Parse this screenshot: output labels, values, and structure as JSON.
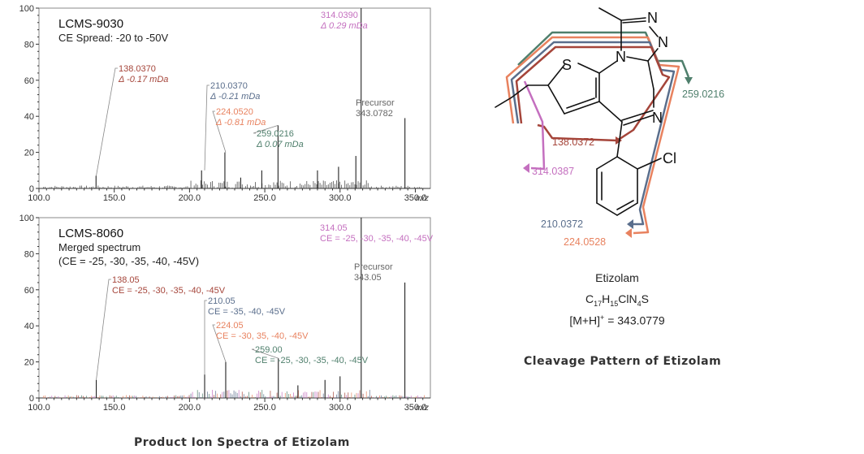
{
  "colors": {
    "c138": "#a5453a",
    "c210": "#5a6e8c",
    "c224": "#e8825f",
    "c259": "#4f7f6c",
    "c314": "#c46fbf",
    "precursor": "#666666",
    "axis": "#333333"
  },
  "chart_data": [
    {
      "type": "line",
      "title": "LCMS-9030",
      "subtitle": "CE Spread: -20 to -50V",
      "xlabel": "m/z",
      "ylabel": "",
      "xlim": [
        100,
        360
      ],
      "ylim": [
        0,
        100
      ],
      "xticks": [
        "100.0",
        "150.0",
        "200.0",
        "250.0",
        "300.0",
        "350.0"
      ],
      "yticks": [
        "0",
        "20",
        "40",
        "60",
        "80",
        "100"
      ],
      "grid": false,
      "peaks": [
        {
          "mz": 137.9,
          "intensity": 7
        },
        {
          "mz": 208.0,
          "intensity": 10
        },
        {
          "mz": 223.5,
          "intensity": 20
        },
        {
          "mz": 234,
          "intensity": 6
        },
        {
          "mz": 248,
          "intensity": 10
        },
        {
          "mz": 258.8,
          "intensity": 35
        },
        {
          "mz": 285,
          "intensity": 10
        },
        {
          "mz": 299,
          "intensity": 12
        },
        {
          "mz": 310.5,
          "intensity": 18
        },
        {
          "mz": 314.0,
          "intensity": 100
        },
        {
          "mz": 343.1,
          "intensity": 39
        }
      ],
      "annotations": [
        {
          "mz": 138.037,
          "line1": "138.0370",
          "line2": "Δ -0.17 mDa",
          "color": "c138"
        },
        {
          "mz": 210.037,
          "line1": "210.0370",
          "line2": "Δ -0.21 mDa",
          "color": "c210"
        },
        {
          "mz": 224.052,
          "line1": "224.0520",
          "line2": "Δ -0.81 mDa",
          "color": "c224"
        },
        {
          "mz": 259.0216,
          "line1": "259.0216",
          "line2": "Δ 0.07 mDa",
          "color": "c259"
        },
        {
          "mz": 314.039,
          "line1": "314.0390",
          "line2": "Δ 0.29 mDa",
          "color": "c314"
        },
        {
          "mz": 343.0782,
          "line1": "Precursor",
          "line2": "343.0782",
          "color": "precursor"
        }
      ]
    },
    {
      "type": "line",
      "title": "LCMS-8060",
      "subtitle": "Merged spectrum",
      "subtitle2": "(CE = -25, -30, -35, -40, -45V)",
      "xlabel": "m/z",
      "ylabel": "",
      "xlim": [
        100,
        360
      ],
      "ylim": [
        0,
        100
      ],
      "xticks": [
        "100.0",
        "150.0",
        "200.0",
        "250.0",
        "300.0",
        "350.0"
      ],
      "yticks": [
        "0",
        "20",
        "40",
        "60",
        "80",
        "100"
      ],
      "grid": false,
      "peaks": [
        {
          "mz": 138.05,
          "intensity": 10
        },
        {
          "mz": 210.05,
          "intensity": 13
        },
        {
          "mz": 224.05,
          "intensity": 20
        },
        {
          "mz": 259.0,
          "intensity": 22
        },
        {
          "mz": 272,
          "intensity": 7
        },
        {
          "mz": 290,
          "intensity": 10
        },
        {
          "mz": 300,
          "intensity": 12
        },
        {
          "mz": 314.05,
          "intensity": 100
        },
        {
          "mz": 343.05,
          "intensity": 64
        }
      ],
      "annotations": [
        {
          "mz": 138.05,
          "line1": "138.05",
          "line2": "CE = -25, -30, -35, -40, -45V",
          "color": "c138"
        },
        {
          "mz": 210.05,
          "line1": "210.05",
          "line2": "CE = -35, -40, -45V",
          "color": "c210"
        },
        {
          "mz": 224.05,
          "line1": "224.05",
          "line2": "CE = -30, 35, -40, -45V",
          "color": "c224"
        },
        {
          "mz": 259.0,
          "line1": "259.00",
          "line2": "CE = -25, -30, -35, -40, -45V",
          "color": "c259"
        },
        {
          "mz": 314.05,
          "line1": "314.05",
          "line2": "CE = -25, -30, -35, -40, -45V",
          "color": "c314"
        },
        {
          "mz": 343.05,
          "line1": "Precursor",
          "line2": "343.05",
          "color": "precursor"
        }
      ]
    }
  ],
  "structure": {
    "atoms": {
      "S": "S",
      "N1": "N",
      "N2": "N",
      "N3": "N",
      "N4": "N",
      "Cl": "Cl"
    },
    "fragments": [
      {
        "label": "259.0216",
        "color": "c259"
      },
      {
        "label": "138.0372",
        "color": "c138"
      },
      {
        "label": "314.0387",
        "color": "c314"
      },
      {
        "label": "210.0372",
        "color": "c210"
      },
      {
        "label": "224.0528",
        "color": "c224"
      }
    ]
  },
  "compound": {
    "name": "Etizolam",
    "formula_parts": [
      [
        "C",
        ""
      ],
      [
        "17",
        "sub"
      ],
      [
        "H",
        ""
      ],
      [
        "15",
        "sub"
      ],
      [
        "ClN",
        ""
      ],
      [
        "4",
        "sub"
      ],
      [
        "S",
        ""
      ]
    ],
    "mh_prefix": "[M+H]",
    "mh_sup": "+",
    "mh_value": " = 343.0779"
  },
  "captions": {
    "left": "Product Ion Spectra of Etizolam",
    "right": "Cleavage Pattern of Etizolam"
  }
}
